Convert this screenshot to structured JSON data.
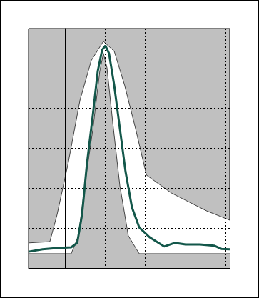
{
  "chart_data": {
    "type": "line",
    "xlim": [
      -0.9,
      4.1
    ],
    "xticks": [
      0,
      1,
      2,
      3,
      4
    ],
    "ylim": [
      0,
      6
    ],
    "yticks": [
      1,
      2,
      3,
      4,
      5
    ],
    "grid": true,
    "tick_labels": false,
    "series": [
      {
        "type": "area",
        "color": "#ffffff",
        "x": [
          -0.9,
          -0.37,
          -0.19,
          0.08,
          0.38,
          0.66,
          0.96,
          1.23,
          1.49,
          1.76,
          2.03,
          2.65,
          3.0,
          3.53,
          4.1
        ],
        "values": [
          0.63,
          0.66,
          1.34,
          2.6,
          4.21,
          5.2,
          5.68,
          5.43,
          4.57,
          3.49,
          2.33,
          1.88,
          1.7,
          1.43,
          1.2
        ]
      },
      {
        "type": "area",
        "color": "#c0c0c0",
        "x": [
          -0.9,
          0.16,
          0.34,
          0.52,
          0.7,
          0.87,
          0.96,
          1.05,
          1.19,
          1.37,
          1.58,
          1.85,
          4.1
        ],
        "values": [
          0.36,
          0.36,
          0.81,
          2.24,
          3.49,
          4.93,
          5.38,
          5.02,
          3.67,
          2.06,
          0.81,
          0.36,
          0.36
        ]
      },
      {
        "type": "line",
        "color": "#13574a",
        "x": [
          -0.9,
          -0.55,
          -0.19,
          0.16,
          0.31,
          0.43,
          0.55,
          0.7,
          0.82,
          0.93,
          1.01,
          1.1,
          1.23,
          1.37,
          1.51,
          1.67,
          1.85,
          2.11,
          2.47,
          2.73,
          3.0,
          3.36,
          3.71,
          3.89,
          4.1
        ],
        "values": [
          0.41,
          0.47,
          0.5,
          0.52,
          0.63,
          1.34,
          2.6,
          3.85,
          4.93,
          5.47,
          5.57,
          5.38,
          4.57,
          3.49,
          2.42,
          1.52,
          1.02,
          0.77,
          0.54,
          0.63,
          0.59,
          0.59,
          0.56,
          0.48,
          0.47
        ]
      }
    ]
  }
}
